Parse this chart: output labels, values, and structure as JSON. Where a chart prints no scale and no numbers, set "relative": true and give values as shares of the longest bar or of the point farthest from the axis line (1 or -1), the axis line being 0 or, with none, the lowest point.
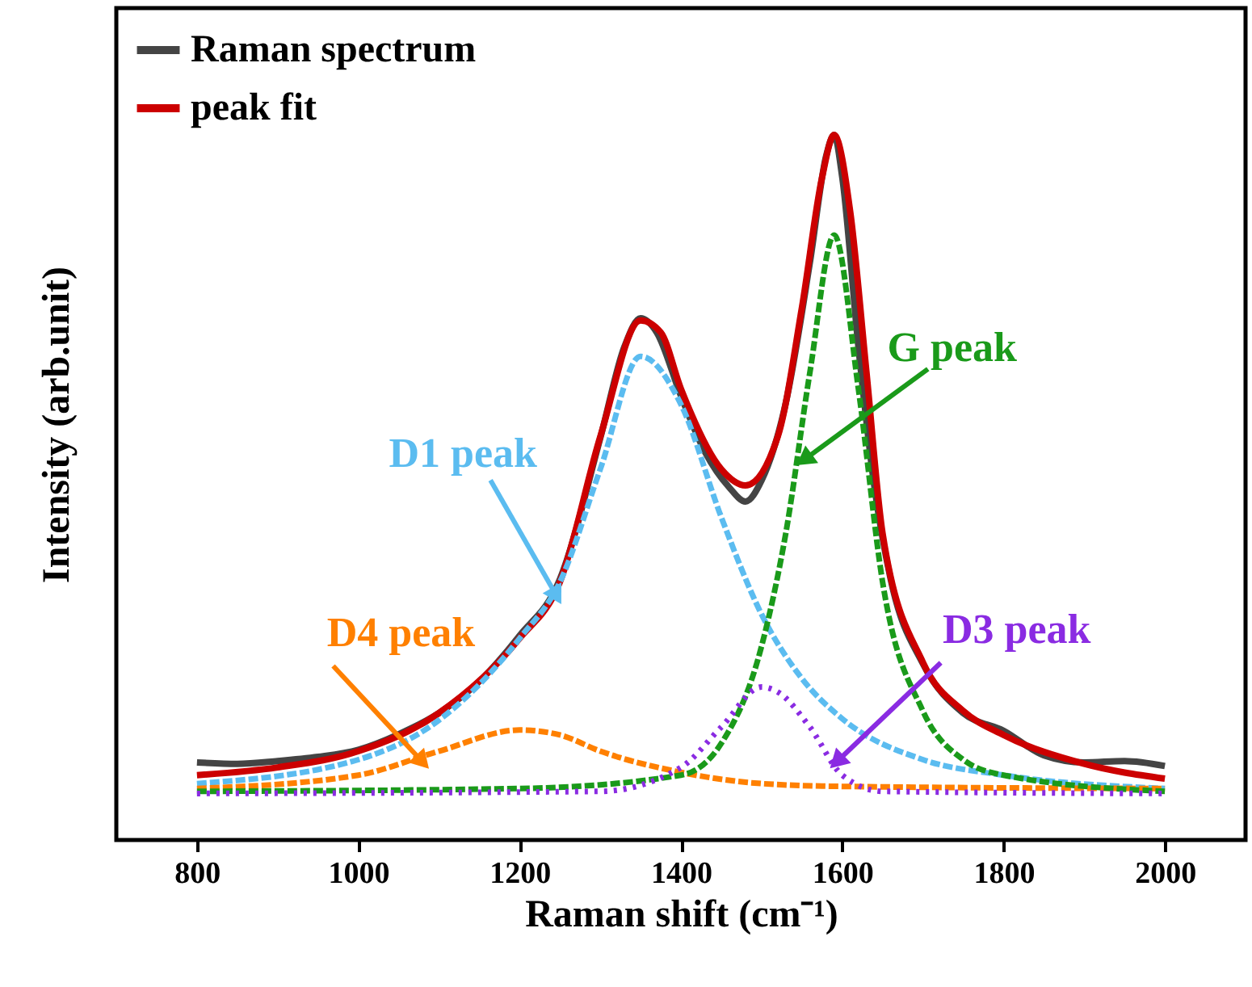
{
  "chart_data": {
    "type": "line",
    "relative": true,
    "xlabel": "Raman shift (cm⁻¹)",
    "ylabel": "Intensity (arb.unit)",
    "xlim": [
      700,
      2100
    ],
    "xticks": [
      800,
      1000,
      1200,
      1400,
      1600,
      1800,
      2000
    ],
    "grid": false,
    "legend": "top left",
    "marker": "none",
    "series": [
      {
        "name": "Raman spectrum",
        "color": "#444444",
        "line_style": "solid",
        "x": [
          800,
          850,
          900,
          950,
          1000,
          1050,
          1100,
          1150,
          1200,
          1250,
          1300,
          1330,
          1350,
          1370,
          1400,
          1430,
          1460,
          1480,
          1500,
          1530,
          1560,
          1580,
          1590,
          1600,
          1620,
          1640,
          1660,
          1700,
          1750,
          1800,
          1850,
          1900,
          1950,
          2000
        ],
        "values": [
          0.11,
          0.108,
          0.112,
          0.118,
          0.128,
          0.15,
          0.18,
          0.225,
          0.29,
          0.37,
          0.57,
          0.7,
          0.74,
          0.72,
          0.63,
          0.55,
          0.5,
          0.48,
          0.51,
          0.62,
          0.82,
          0.97,
          1.0,
          0.94,
          0.7,
          0.5,
          0.37,
          0.25,
          0.18,
          0.155,
          0.12,
          0.11,
          0.112,
          0.105
        ]
      },
      {
        "name": "peak fit",
        "color": "#cc0000",
        "line_style": "solid",
        "x": [
          800,
          900,
          1000,
          1100,
          1200,
          1250,
          1300,
          1350,
          1375,
          1400,
          1450,
          1480,
          1520,
          1550,
          1575,
          1590,
          1610,
          1630,
          1650,
          1700,
          1750,
          1800,
          1900,
          2000
        ],
        "values": [
          0.092,
          0.103,
          0.126,
          0.18,
          0.286,
          0.366,
          0.572,
          0.737,
          0.72,
          0.64,
          0.526,
          0.503,
          0.572,
          0.755,
          0.94,
          1.0,
          0.89,
          0.664,
          0.435,
          0.252,
          0.183,
          0.149,
          0.108,
          0.087
        ]
      },
      {
        "color": "#5bbcf0",
        "line_style": "dashed",
        "x": [
          800,
          1000,
          1100,
          1200,
          1250,
          1300,
          1350,
          1400,
          1450,
          1500,
          1550,
          1600,
          1700,
          1800,
          2000
        ],
        "values": [
          0.08,
          0.114,
          0.17,
          0.286,
          0.366,
          0.526,
          0.686,
          0.618,
          0.458,
          0.32,
          0.229,
          0.172,
          0.114,
          0.092,
          0.073
        ]
      },
      {
        "color": "#ff8000",
        "line_style": "dashed",
        "x": [
          800,
          1000,
          1100,
          1200,
          1250,
          1300,
          1400,
          1500,
          1600,
          2000
        ],
        "values": [
          0.073,
          0.092,
          0.126,
          0.156,
          0.149,
          0.126,
          0.096,
          0.08,
          0.076,
          0.073
        ]
      },
      {
        "color": "#1a9a1a",
        "line_style": "dashed",
        "x": [
          800,
          1200,
          1400,
          1450,
          1500,
          1530,
          1560,
          1590,
          1620,
          1650,
          1700,
          1750,
          1800,
          2000
        ],
        "values": [
          0.069,
          0.073,
          0.092,
          0.137,
          0.275,
          0.435,
          0.664,
          0.858,
          0.64,
          0.366,
          0.183,
          0.114,
          0.092,
          0.069
        ]
      },
      {
        "color": "#8a2be2",
        "line_style": "dotted",
        "x": [
          800,
          1300,
          1400,
          1450,
          1500,
          1520,
          1560,
          1600,
          1650,
          2000
        ],
        "values": [
          0.066,
          0.069,
          0.103,
          0.16,
          0.217,
          0.21,
          0.16,
          0.092,
          0.069,
          0.066
        ]
      }
    ],
    "annotations": [
      {
        "text": "D1 peak",
        "x": 1244,
        "y": 0.35
      },
      {
        "text": "D4 peak",
        "x": 1077,
        "y": 0.114
      },
      {
        "text": "G peak",
        "x": 1556,
        "y": 0.542
      },
      {
        "text": "D3 peak",
        "x": 1596,
        "y": 0.114
      }
    ]
  }
}
